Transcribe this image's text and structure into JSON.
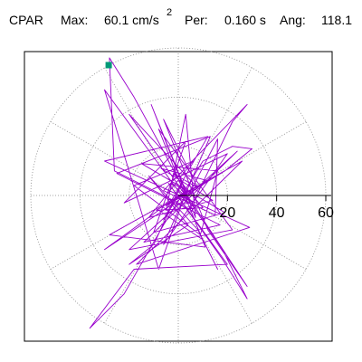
{
  "header": {
    "component": "CPAR",
    "max_label": "Max:",
    "max_value": "60.1 cm/s",
    "max_exponent": "2",
    "per_label": "Per:",
    "per_value": "0.160 s",
    "ang_label": "Ang:",
    "ang_value": "118.1"
  },
  "chart_data": {
    "type": "polar",
    "radial_ticks": [
      20,
      40,
      60
    ],
    "rlim": [
      0,
      60
    ],
    "ring_step": 20,
    "angular_gridline_step_deg": 30,
    "grid": true,
    "max": {
      "magnitude": 60.1,
      "units": "cm/s²",
      "angle_deg": 118.1,
      "period_s": 0.16
    },
    "marker": {
      "r": 60.1,
      "angle_deg": 118.1,
      "color": "#009977"
    },
    "trace_color": "#9900cc",
    "trace": [
      [
        0,
        0
      ],
      [
        4,
        2
      ],
      [
        -3,
        5
      ],
      [
        6,
        -3
      ],
      [
        -5,
        -4
      ],
      [
        8,
        3
      ],
      [
        -2,
        9
      ],
      [
        10,
        -5
      ],
      [
        -9,
        -6
      ],
      [
        12,
        6
      ],
      [
        -7,
        11
      ],
      [
        14,
        -2
      ],
      [
        -12,
        -9
      ],
      [
        6,
        14
      ],
      [
        -18,
        4
      ],
      [
        9,
        -16
      ],
      [
        16,
        10
      ],
      [
        -15,
        13
      ],
      [
        19,
        -7
      ],
      [
        -10,
        -15
      ],
      [
        3,
        22
      ],
      [
        -22,
        -3
      ],
      [
        20,
        17
      ],
      [
        -6,
        -20
      ],
      [
        13,
        24
      ],
      [
        -25,
        9
      ],
      [
        17,
        -12
      ],
      [
        -14,
        -19
      ],
      [
        24,
        18
      ],
      [
        -20,
        -22
      ],
      [
        22,
        -14
      ],
      [
        -8,
        27
      ],
      [
        11,
        -21
      ],
      [
        -28,
        -16
      ],
      [
        26,
        14
      ],
      [
        -17,
        -28
      ],
      [
        29,
        -13
      ],
      [
        -30,
        14
      ],
      [
        12,
        24
      ],
      [
        -5,
        -6
      ],
      [
        3,
        33
      ],
      [
        7,
        -9
      ],
      [
        -11,
        37
      ],
      [
        5,
        -3
      ],
      [
        -20,
        33
      ],
      [
        8,
        3
      ],
      [
        -6,
        31
      ],
      [
        12,
        -14
      ],
      [
        28,
        -37
      ],
      [
        3,
        1
      ],
      [
        -8,
        -30
      ],
      [
        -30,
        43
      ],
      [
        5,
        -5
      ],
      [
        22,
        30
      ],
      [
        28,
        37
      ],
      [
        -6,
        2
      ],
      [
        15,
        -8
      ],
      [
        16,
        23
      ],
      [
        2,
        -4
      ],
      [
        -26,
        10
      ],
      [
        -28,
        56
      ],
      [
        -18,
        40
      ],
      [
        -6,
        18
      ],
      [
        5,
        -3
      ],
      [
        18,
        -22
      ],
      [
        28,
        -42
      ],
      [
        18,
        -26
      ],
      [
        -4,
        5
      ],
      [
        20,
        -28
      ],
      [
        -18,
        -30
      ],
      [
        -36,
        -54
      ],
      [
        -22,
        -40
      ],
      [
        -6,
        -12
      ],
      [
        10,
        14
      ],
      [
        22,
        20
      ],
      [
        30,
        19
      ],
      [
        19,
        10
      ],
      [
        6,
        2
      ],
      [
        -30,
        -22
      ],
      [
        -8,
        -6
      ],
      [
        10,
        -18
      ],
      [
        16,
        -30
      ],
      [
        8,
        -14
      ],
      [
        -12,
        8
      ],
      [
        4,
        -12
      ],
      [
        -20,
        -28
      ],
      [
        -10,
        -20
      ],
      [
        2,
        6
      ],
      [
        -6,
        -10
      ],
      [
        0,
        0
      ]
    ]
  }
}
